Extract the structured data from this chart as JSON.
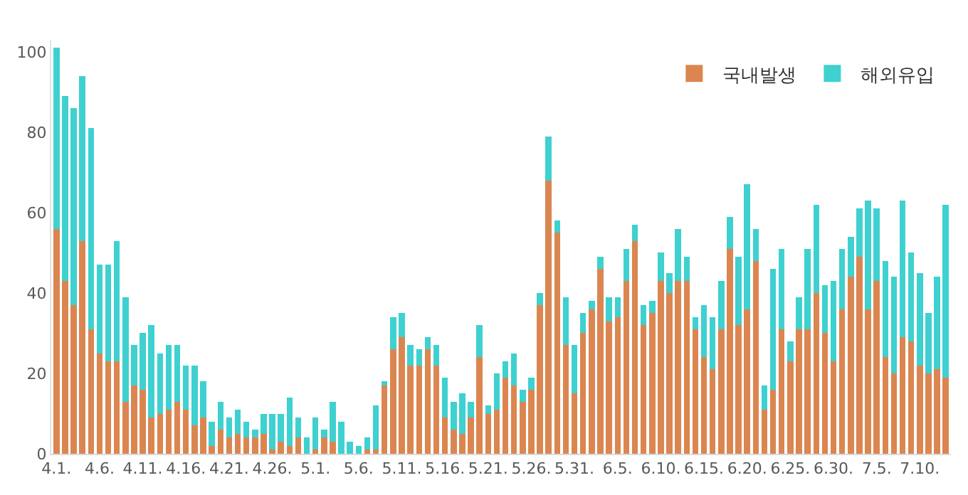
{
  "chart_data": {
    "type": "bar",
    "stacked": true,
    "categories": [
      "4.1.",
      null,
      null,
      null,
      null,
      "4.6.",
      null,
      null,
      null,
      null,
      "4.11.",
      null,
      null,
      null,
      null,
      "4.16.",
      null,
      null,
      null,
      null,
      "4.21.",
      null,
      null,
      null,
      null,
      "4.26.",
      null,
      null,
      null,
      null,
      "5.1.",
      null,
      null,
      null,
      null,
      "5.6.",
      null,
      null,
      null,
      null,
      "5.11.",
      null,
      null,
      null,
      null,
      "5.16.",
      null,
      null,
      null,
      null,
      "5.21.",
      null,
      null,
      null,
      null,
      "5.26.",
      null,
      null,
      null,
      null,
      "5.31.",
      null,
      null,
      null,
      null,
      "6.5.",
      null,
      null,
      null,
      null,
      "6.10.",
      null,
      null,
      null,
      null,
      "6.15.",
      null,
      null,
      null,
      null,
      "6.20.",
      null,
      null,
      null,
      null,
      "6.25.",
      null,
      null,
      null,
      null,
      "6.30.",
      null,
      null,
      null,
      null,
      "7.5.",
      null,
      null,
      null,
      null,
      "7.10.",
      null,
      null,
      null
    ],
    "series": [
      {
        "name": "국내발생",
        "color": "#db8650",
        "values": [
          56,
          43,
          37,
          53,
          31,
          25,
          23,
          23,
          13,
          17,
          16,
          9,
          10,
          11,
          13,
          11,
          7,
          9,
          2,
          6,
          4,
          5,
          4,
          4,
          5,
          1,
          3,
          2,
          4,
          0,
          1,
          4,
          3,
          0,
          0,
          0,
          1,
          1,
          17,
          26,
          29,
          22,
          22,
          26,
          22,
          9,
          6,
          5,
          9,
          24,
          10,
          11,
          19,
          17,
          13,
          16,
          37,
          68,
          55,
          27,
          15,
          30,
          36,
          46,
          33,
          34,
          43,
          53,
          32,
          35,
          43,
          40,
          43,
          43,
          31,
          24,
          21,
          31,
          51,
          32,
          36,
          48,
          11,
          16,
          31,
          23,
          31,
          31,
          40,
          30,
          23,
          36,
          44,
          49,
          36,
          43,
          24,
          20,
          29,
          28,
          22,
          20,
          21,
          19
        ]
      },
      {
        "name": "해외유입",
        "color": "#3fd0d0",
        "values": [
          45,
          46,
          49,
          41,
          50,
          22,
          24,
          30,
          26,
          10,
          14,
          23,
          15,
          16,
          14,
          11,
          15,
          9,
          6,
          7,
          5,
          6,
          4,
          2,
          5,
          9,
          7,
          12,
          5,
          4,
          8,
          2,
          10,
          8,
          3,
          2,
          3,
          11,
          1,
          8,
          6,
          5,
          4,
          3,
          5,
          10,
          7,
          10,
          4,
          8,
          2,
          9,
          4,
          8,
          3,
          3,
          3,
          11,
          3,
          12,
          12,
          5,
          2,
          3,
          6,
          5,
          8,
          4,
          5,
          3,
          7,
          5,
          13,
          6,
          3,
          13,
          13,
          12,
          8,
          17,
          31,
          8,
          6,
          30,
          20,
          5,
          8,
          20,
          22,
          12,
          20,
          15,
          10,
          12,
          27,
          18,
          24,
          24,
          34,
          22,
          23,
          15,
          23,
          43
        ]
      }
    ],
    "ylim": [
      0,
      103
    ],
    "yticks": [
      0,
      20,
      40,
      60,
      80,
      100
    ],
    "legend": "top right"
  }
}
